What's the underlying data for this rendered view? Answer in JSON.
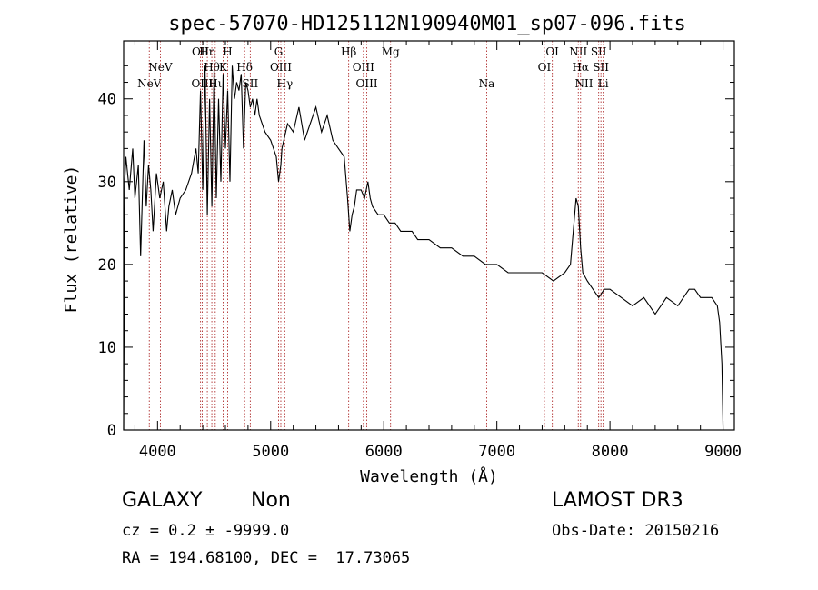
{
  "chart_data": {
    "type": "line",
    "title": "spec-57070-HD125112N190940M01_sp07-096.fits",
    "xlabel": "Wavelength (Å)",
    "ylabel": "Flux (relative)",
    "xlim": [
      3700,
      9100
    ],
    "ylim": [
      0,
      47
    ],
    "x_ticks": [
      4000,
      5000,
      6000,
      7000,
      8000,
      9000
    ],
    "y_ticks": [
      0,
      10,
      20,
      30,
      40
    ],
    "series": [
      {
        "name": "spectrum",
        "x": [
          3700,
          3710,
          3720,
          3750,
          3780,
          3800,
          3830,
          3850,
          3880,
          3900,
          3920,
          3940,
          3960,
          3990,
          4020,
          4050,
          4080,
          4100,
          4130,
          4160,
          4200,
          4250,
          4300,
          4340,
          4360,
          4380,
          4400,
          4420,
          4440,
          4460,
          4480,
          4500,
          4520,
          4540,
          4560,
          4580,
          4600,
          4620,
          4640,
          4660,
          4680,
          4700,
          4720,
          4740,
          4760,
          4780,
          4800,
          4820,
          4840,
          4860,
          4880,
          4900,
          4950,
          5000,
          5050,
          5070,
          5090,
          5100,
          5150,
          5200,
          5250,
          5300,
          5350,
          5400,
          5450,
          5500,
          5550,
          5600,
          5650,
          5680,
          5700,
          5720,
          5740,
          5760,
          5800,
          5830,
          5860,
          5880,
          5900,
          5950,
          6000,
          6050,
          6100,
          6150,
          6200,
          6250,
          6300,
          6400,
          6500,
          6600,
          6700,
          6800,
          6900,
          7000,
          7100,
          7200,
          7300,
          7400,
          7500,
          7600,
          7650,
          7700,
          7720,
          7740,
          7760,
          7800,
          7850,
          7900,
          7950,
          8000,
          8100,
          8200,
          8300,
          8400,
          8450,
          8500,
          8600,
          8700,
          8750,
          8800,
          8850,
          8900,
          8950,
          8970,
          8990,
          9000
        ],
        "y": [
          0,
          30,
          33,
          29,
          34,
          28,
          32,
          21,
          35,
          27,
          32,
          29,
          24,
          31,
          28,
          30,
          24,
          27,
          29,
          26,
          28,
          29,
          31,
          34,
          31,
          41,
          29,
          44,
          26,
          40,
          27,
          44,
          28,
          40,
          30,
          43,
          34,
          41,
          30,
          44,
          40,
          42,
          41,
          43,
          34,
          42,
          41,
          39,
          40,
          38,
          40,
          38,
          36,
          35,
          33,
          30,
          32,
          34,
          37,
          36,
          39,
          35,
          37,
          39,
          36,
          38,
          35,
          34,
          33,
          28,
          24,
          26,
          27,
          29,
          29,
          28,
          30,
          28,
          27,
          26,
          26,
          25,
          25,
          24,
          24,
          24,
          23,
          23,
          22,
          22,
          21,
          21,
          20,
          20,
          19,
          19,
          19,
          19,
          18,
          19,
          20,
          28,
          27,
          22,
          19,
          18,
          17,
          16,
          17,
          17,
          16,
          15,
          16,
          14,
          15,
          16,
          15,
          17,
          17,
          16,
          16,
          16,
          15,
          13,
          8,
          0
        ]
      }
    ],
    "line_markers": [
      {
        "label": "NeV",
        "x": 3927,
        "row": 2
      },
      {
        "label": "NeV",
        "x": 4025,
        "row": 1
      },
      {
        "label": "OII",
        "x": 4380,
        "row": 0
      },
      {
        "label": "OIII",
        "x": 4395,
        "row": 2
      },
      {
        "label": "Hη",
        "x": 4440,
        "row": 0
      },
      {
        "label": "Hθ",
        "x": 4480,
        "row": 1
      },
      {
        "label": "Hι",
        "x": 4510,
        "row": 2
      },
      {
        "label": "K",
        "x": 4580,
        "row": 1
      },
      {
        "label": "H",
        "x": 4620,
        "row": 0
      },
      {
        "label": "Hδ",
        "x": 4770,
        "row": 1
      },
      {
        "label": "SII",
        "x": 4820,
        "row": 2
      },
      {
        "label": "G",
        "x": 5070,
        "row": 0
      },
      {
        "label": "OIII",
        "x": 5090,
        "row": 1
      },
      {
        "label": "Hγ",
        "x": 5125,
        "row": 2
      },
      {
        "label": "Hβ",
        "x": 5690,
        "row": 0
      },
      {
        "label": "OIII",
        "x": 5820,
        "row": 1
      },
      {
        "label": "OIII",
        "x": 5850,
        "row": 2
      },
      {
        "label": "Mg",
        "x": 6060,
        "row": 0
      },
      {
        "label": "Na",
        "x": 6910,
        "row": 2
      },
      {
        "label": "OI",
        "x": 7420,
        "row": 1
      },
      {
        "label": "OI",
        "x": 7490,
        "row": 0
      },
      {
        "label": "NII",
        "x": 7720,
        "row": 0
      },
      {
        "label": "Hα",
        "x": 7740,
        "row": 1
      },
      {
        "label": "NII",
        "x": 7770,
        "row": 2
      },
      {
        "label": "SII",
        "x": 7900,
        "row": 0
      },
      {
        "label": "SII",
        "x": 7920,
        "row": 1
      },
      {
        "label": "Li",
        "x": 7940,
        "row": 2
      }
    ]
  },
  "info": {
    "object_class": "GALAXY",
    "subclass": "Non",
    "survey": "LAMOST DR3",
    "cz": "cz = 0.2 ± -9999.0",
    "obs_date": "Obs-Date: 20150216",
    "coords": "RA = 194.68100, DEC =  17.73065"
  },
  "colors": {
    "spectrum": "#000000",
    "marker_line": "#b03030"
  }
}
